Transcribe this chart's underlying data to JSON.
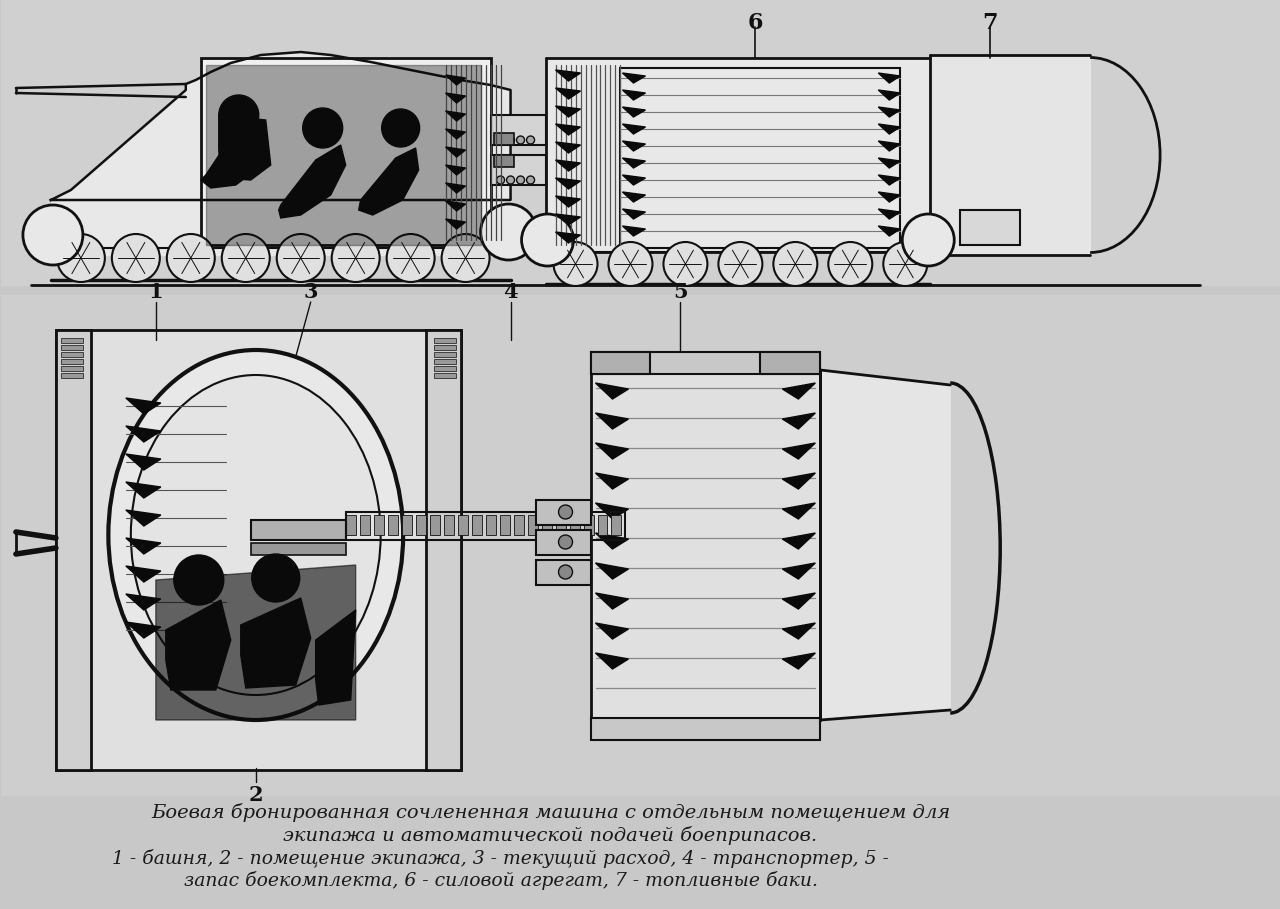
{
  "background_color": "#c8c8c8",
  "caption_line1": "Боевая бронированная сочлененная машина с отдельным помещением для",
  "caption_line2": "экипажа и автоматической подачей боеприпасов.",
  "caption_line3": "1 - башня, 2 - помещение экипажа, 3 - текущий расход, 4 - транспортер, 5 -",
  "caption_line4": "запас боекомплекта, 6 - силовой агрегат, 7 - топливные баки.",
  "label_1": "1",
  "label_2": "2",
  "label_3": "3",
  "label_4": "4",
  "label_5": "5",
  "label_6": "6",
  "label_7": "7",
  "line_color": "#111111",
  "body_fill": "#e8e8e8",
  "white_fill": "#f0f0f0",
  "dark_fill": "#0a0a0a",
  "mid_fill": "#666666",
  "light_fill": "#d4d4d4",
  "caption_fontsize": 14,
  "label_fontsize": 15
}
